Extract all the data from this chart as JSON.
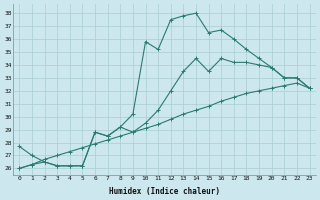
{
  "xlabel": "Humidex (Indice chaleur)",
  "bg_color": "#cce8ee",
  "grid_color": "#aaccd4",
  "line_color": "#2a7a6f",
  "xlim": [
    -0.5,
    23.5
  ],
  "ylim": [
    25.5,
    38.7
  ],
  "yticks": [
    26,
    27,
    28,
    29,
    30,
    31,
    32,
    33,
    34,
    35,
    36,
    37,
    38
  ],
  "xticks": [
    0,
    1,
    2,
    3,
    4,
    5,
    6,
    7,
    8,
    9,
    10,
    11,
    12,
    13,
    14,
    15,
    16,
    17,
    18,
    19,
    20,
    21,
    22,
    23
  ],
  "line1_x": [
    0,
    1,
    2,
    3,
    4,
    5,
    6,
    7,
    8,
    9,
    10,
    11,
    12,
    13,
    14,
    15,
    16,
    17,
    18,
    19,
    20,
    21,
    22,
    23
  ],
  "line1_y": [
    27.7,
    27.0,
    26.5,
    26.2,
    26.2,
    26.2,
    28.8,
    28.5,
    29.2,
    30.2,
    35.8,
    35.2,
    37.5,
    37.8,
    38.0,
    36.5,
    36.7,
    36.0,
    35.2,
    34.5,
    33.8,
    33.0,
    33.0,
    32.2
  ],
  "line2_x": [
    0,
    1,
    2,
    3,
    4,
    5,
    6,
    7,
    8,
    9,
    10,
    11,
    12,
    13,
    14,
    15,
    16,
    17,
    18,
    19,
    20,
    21,
    22,
    23
  ],
  "line2_y": [
    26.0,
    26.3,
    26.5,
    26.2,
    26.2,
    26.2,
    28.8,
    28.5,
    29.2,
    28.8,
    29.5,
    30.5,
    32.0,
    33.5,
    34.5,
    33.5,
    34.5,
    34.2,
    34.2,
    34.0,
    33.8,
    33.0,
    33.0,
    32.2
  ],
  "line3_x": [
    0,
    1,
    2,
    3,
    4,
    5,
    6,
    7,
    8,
    9,
    10,
    11,
    12,
    13,
    14,
    15,
    16,
    17,
    18,
    19,
    20,
    21,
    22,
    23
  ],
  "line3_y": [
    26.0,
    26.3,
    26.7,
    27.0,
    27.3,
    27.6,
    27.9,
    28.2,
    28.5,
    28.8,
    29.1,
    29.4,
    29.8,
    30.2,
    30.5,
    30.8,
    31.2,
    31.5,
    31.8,
    32.0,
    32.2,
    32.4,
    32.6,
    32.2
  ]
}
